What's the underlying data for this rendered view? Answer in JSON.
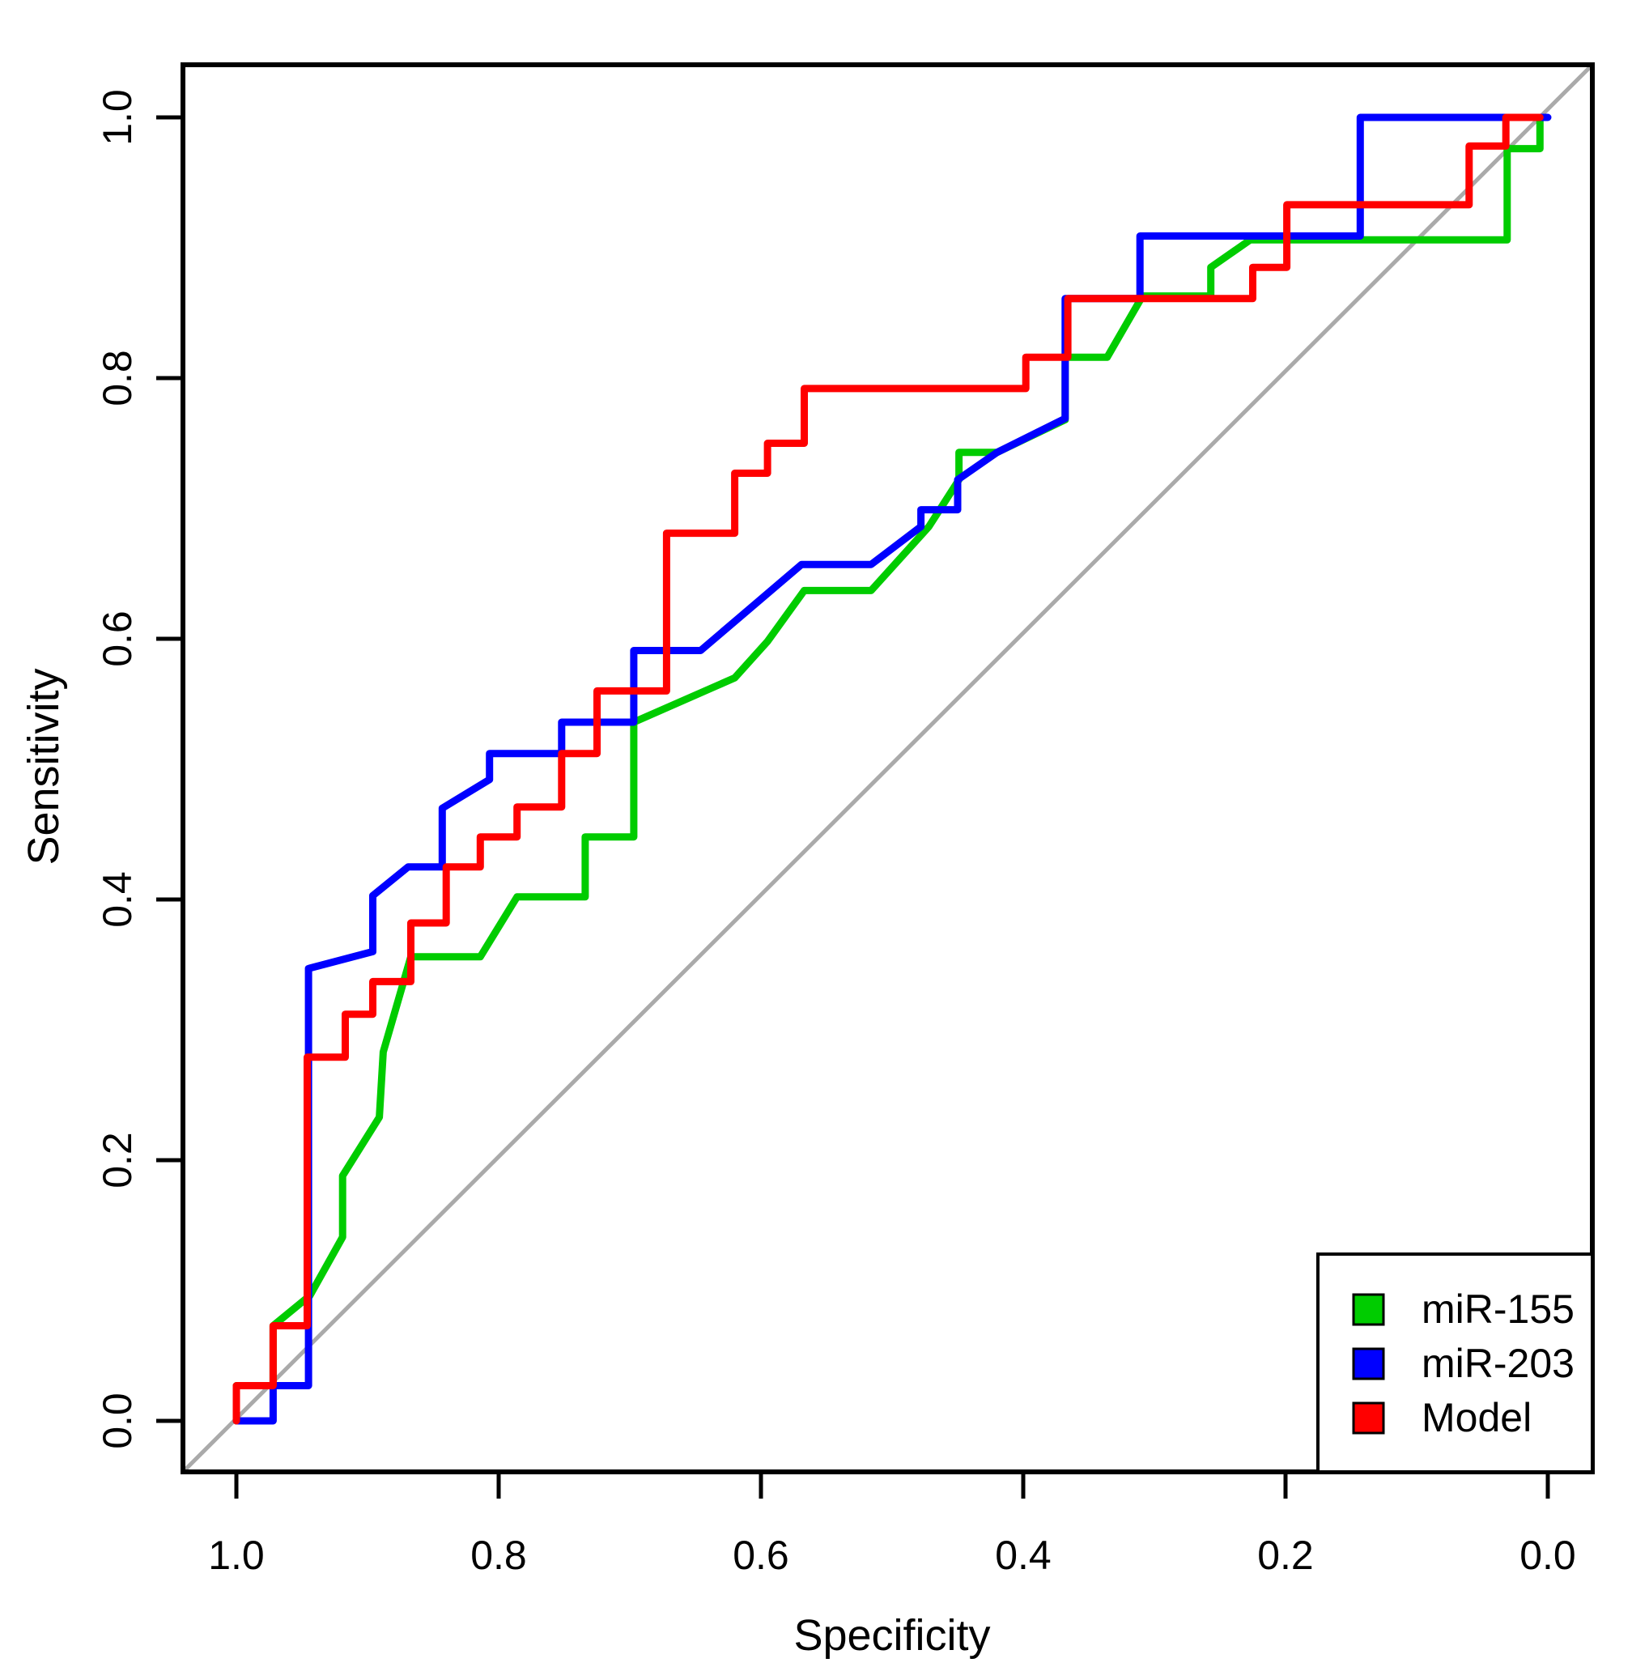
{
  "figure": {
    "background": "#FFFFFF",
    "axes": {
      "x_label": "Specificity",
      "y_label": "Sensitivity",
      "x_tick_labels": [
        "1.0",
        "0.8",
        "0.6",
        "0.4",
        "0.2",
        "0.0"
      ],
      "x_tick_values": [
        1.0,
        0.8,
        0.6,
        0.4,
        0.2,
        0.0
      ],
      "y_tick_labels": [
        "0.0",
        "0.2",
        "0.4",
        "0.6",
        "0.8",
        "1.0"
      ],
      "y_tick_values": [
        0.0,
        0.2,
        0.4,
        0.6,
        0.8,
        1.0
      ]
    },
    "legend": {
      "items": [
        {
          "label": "miR-155",
          "color": "#00CC00"
        },
        {
          "label": "miR-203",
          "color": "#0000FF"
        },
        {
          "label": "Model",
          "color": "#FF0000"
        }
      ]
    }
  },
  "chart_data": {
    "type": "line",
    "subtype": "roc-curves",
    "title": "",
    "xlabel": "Specificity",
    "ylabel": "Sensitivity",
    "xlim": [
      1.0,
      0.0
    ],
    "ylim": [
      0.0,
      1.0
    ],
    "x_axis_reversed": true,
    "grid": false,
    "legend_position": "bottom-right",
    "reference_line": {
      "name": "chance-diagonal",
      "color": "#AAAAAA",
      "from": [
        1.045,
        -0.04
      ],
      "to": [
        -0.035,
        1.04
      ]
    },
    "series": [
      {
        "name": "miR-155",
        "color": "#00CC00",
        "points": [
          [
            1.0,
            0.0
          ],
          [
            1.0,
            0.027
          ],
          [
            0.972,
            0.027
          ],
          [
            0.972,
            0.073
          ],
          [
            0.944,
            0.096
          ],
          [
            0.919,
            0.141
          ],
          [
            0.919,
            0.188
          ],
          [
            0.891,
            0.233
          ],
          [
            0.888,
            0.283
          ],
          [
            0.867,
            0.356
          ],
          [
            0.814,
            0.356
          ],
          [
            0.786,
            0.402
          ],
          [
            0.734,
            0.402
          ],
          [
            0.734,
            0.448
          ],
          [
            0.697,
            0.448
          ],
          [
            0.697,
            0.536
          ],
          [
            0.62,
            0.57
          ],
          [
            0.595,
            0.598
          ],
          [
            0.567,
            0.637
          ],
          [
            0.516,
            0.637
          ],
          [
            0.472,
            0.686
          ],
          [
            0.449,
            0.722
          ],
          [
            0.449,
            0.743
          ],
          [
            0.42,
            0.743
          ],
          [
            0.368,
            0.768
          ],
          [
            0.368,
            0.816
          ],
          [
            0.336,
            0.816
          ],
          [
            0.309,
            0.863
          ],
          [
            0.257,
            0.863
          ],
          [
            0.257,
            0.885
          ],
          [
            0.227,
            0.906
          ],
          [
            0.031,
            0.906
          ],
          [
            0.031,
            0.976
          ],
          [
            0.006,
            0.976
          ],
          [
            0.006,
            1.0
          ]
        ]
      },
      {
        "name": "miR-203",
        "color": "#0000FF",
        "points": [
          [
            1.0,
            0.0
          ],
          [
            0.972,
            0.0
          ],
          [
            0.972,
            0.027
          ],
          [
            0.945,
            0.027
          ],
          [
            0.945,
            0.347
          ],
          [
            0.896,
            0.36
          ],
          [
            0.896,
            0.403
          ],
          [
            0.869,
            0.425
          ],
          [
            0.843,
            0.425
          ],
          [
            0.843,
            0.47
          ],
          [
            0.807,
            0.492
          ],
          [
            0.807,
            0.512
          ],
          [
            0.752,
            0.512
          ],
          [
            0.752,
            0.536
          ],
          [
            0.697,
            0.536
          ],
          [
            0.697,
            0.591
          ],
          [
            0.646,
            0.591
          ],
          [
            0.569,
            0.657
          ],
          [
            0.516,
            0.657
          ],
          [
            0.478,
            0.686
          ],
          [
            0.478,
            0.699
          ],
          [
            0.45,
            0.699
          ],
          [
            0.45,
            0.722
          ],
          [
            0.42,
            0.743
          ],
          [
            0.368,
            0.769
          ],
          [
            0.368,
            0.861
          ],
          [
            0.311,
            0.861
          ],
          [
            0.311,
            0.909
          ],
          [
            0.143,
            0.909
          ],
          [
            0.143,
            1.0
          ],
          [
            0.0,
            1.0
          ]
        ]
      },
      {
        "name": "Model",
        "color": "#FF0000",
        "points": [
          [
            1.0,
            0.0
          ],
          [
            1.0,
            0.027
          ],
          [
            0.972,
            0.027
          ],
          [
            0.972,
            0.073
          ],
          [
            0.946,
            0.073
          ],
          [
            0.946,
            0.279
          ],
          [
            0.917,
            0.279
          ],
          [
            0.917,
            0.312
          ],
          [
            0.896,
            0.312
          ],
          [
            0.896,
            0.337
          ],
          [
            0.867,
            0.337
          ],
          [
            0.867,
            0.382
          ],
          [
            0.84,
            0.382
          ],
          [
            0.84,
            0.425
          ],
          [
            0.814,
            0.425
          ],
          [
            0.814,
            0.448
          ],
          [
            0.786,
            0.448
          ],
          [
            0.786,
            0.471
          ],
          [
            0.752,
            0.471
          ],
          [
            0.752,
            0.512
          ],
          [
            0.725,
            0.512
          ],
          [
            0.725,
            0.56
          ],
          [
            0.672,
            0.56
          ],
          [
            0.672,
            0.681
          ],
          [
            0.62,
            0.681
          ],
          [
            0.62,
            0.727
          ],
          [
            0.595,
            0.727
          ],
          [
            0.595,
            0.75
          ],
          [
            0.567,
            0.75
          ],
          [
            0.567,
            0.792
          ],
          [
            0.398,
            0.792
          ],
          [
            0.398,
            0.816
          ],
          [
            0.366,
            0.816
          ],
          [
            0.366,
            0.861
          ],
          [
            0.225,
            0.861
          ],
          [
            0.225,
            0.885
          ],
          [
            0.199,
            0.885
          ],
          [
            0.199,
            0.933
          ],
          [
            0.06,
            0.933
          ],
          [
            0.06,
            0.978
          ],
          [
            0.032,
            0.978
          ],
          [
            0.032,
            1.0
          ],
          [
            0.006,
            1.0
          ]
        ]
      }
    ]
  }
}
